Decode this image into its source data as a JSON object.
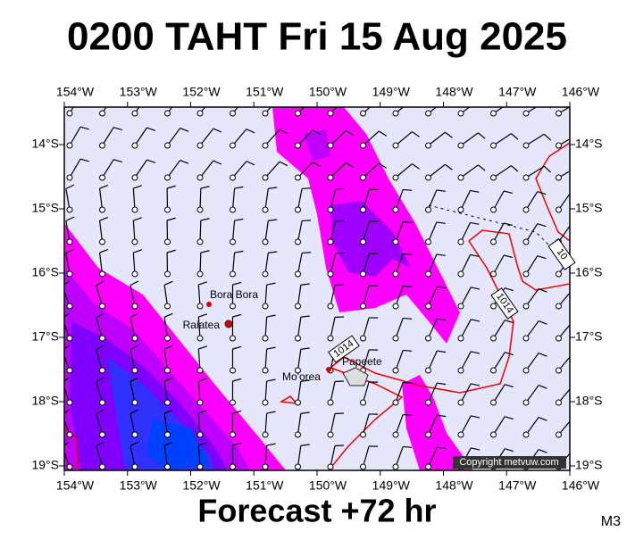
{
  "title": "0200 TAHT Fri 15 Aug 2025",
  "map": {
    "lon_labels": [
      "154°W",
      "153°W",
      "152°W",
      "151°W",
      "150°W",
      "149°W",
      "148°W",
      "147°W",
      "146°W"
    ],
    "lat_labels": [
      "14°S",
      "15°S",
      "16°S",
      "17°S",
      "18°S",
      "19°S"
    ],
    "places": [
      "Bora Bora",
      "Raiatea",
      "Mo'orea",
      "Papeete"
    ],
    "isobar_labels": [
      "1014",
      "1014",
      "10"
    ]
  },
  "footer": {
    "forecast": "Forecast +72 hr",
    "model": "M3",
    "copyright": "Copyright metvuw.com"
  }
}
